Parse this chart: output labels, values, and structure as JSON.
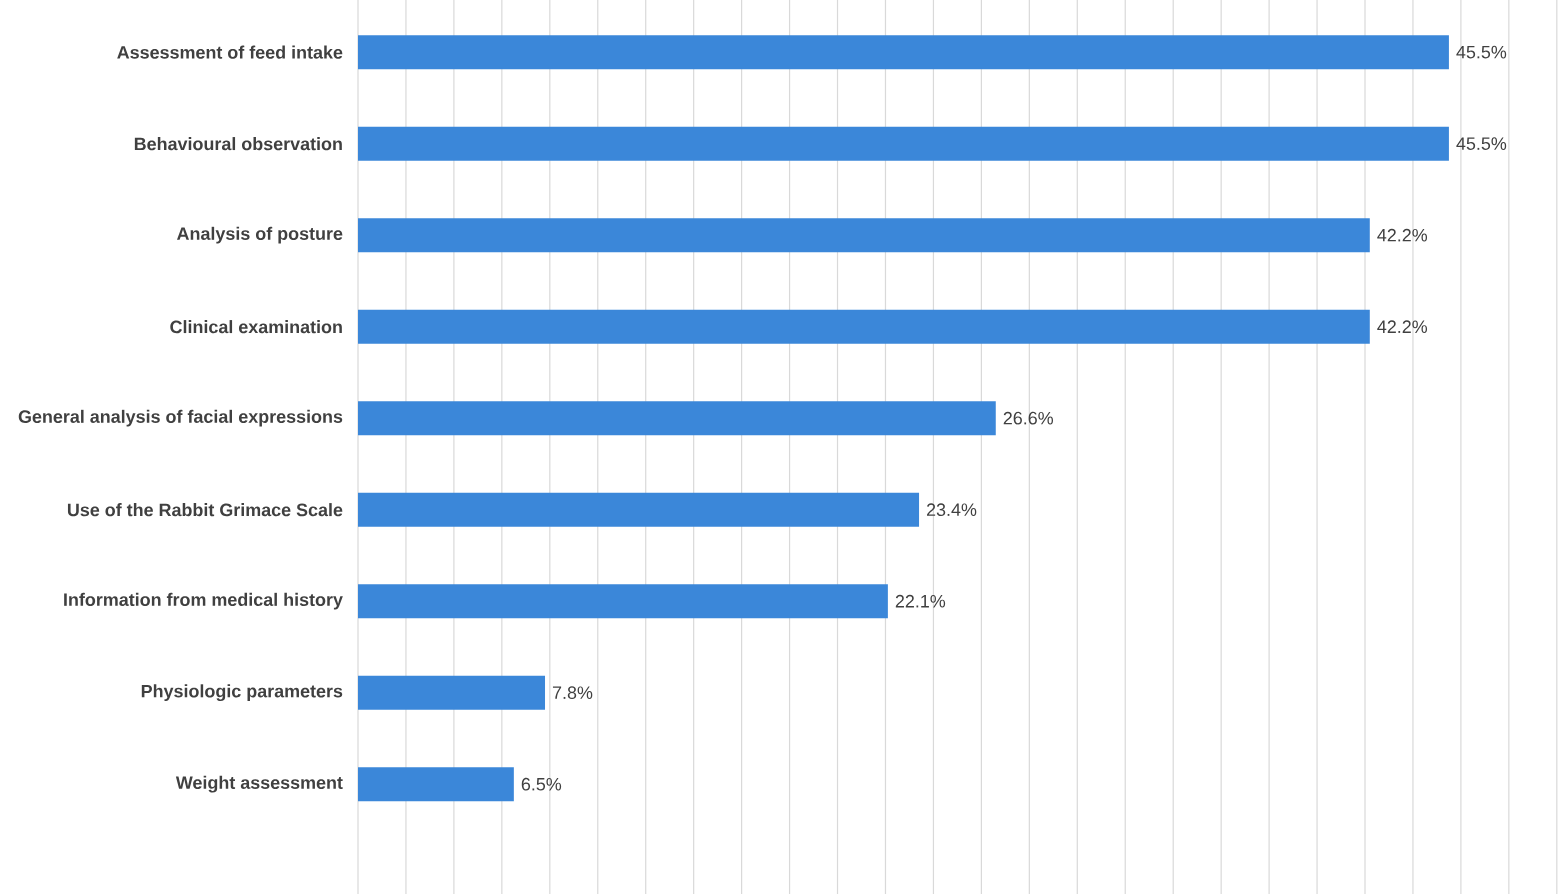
{
  "chart_data": {
    "type": "bar",
    "orientation": "horizontal",
    "categories": [
      "Assessment of feed intake",
      "Behavioural observation",
      "Analysis of posture",
      "Clinical examination",
      "General analysis of facial expressions",
      "Use of the Rabbit Grimace Scale",
      "Information from medical history",
      "Physiologic parameters",
      "Weight assessment"
    ],
    "values": [
      45.5,
      45.5,
      42.2,
      42.2,
      26.6,
      23.4,
      22.1,
      7.8,
      6.5
    ],
    "value_labels": [
      "45.5%",
      "45.5%",
      "42.2%",
      "42.2%",
      "26.6%",
      "23.4%",
      "22.1%",
      "7.8%",
      "6.5%"
    ],
    "color": "#3b87d9",
    "grid": "x",
    "tick_labels": "y"
  }
}
